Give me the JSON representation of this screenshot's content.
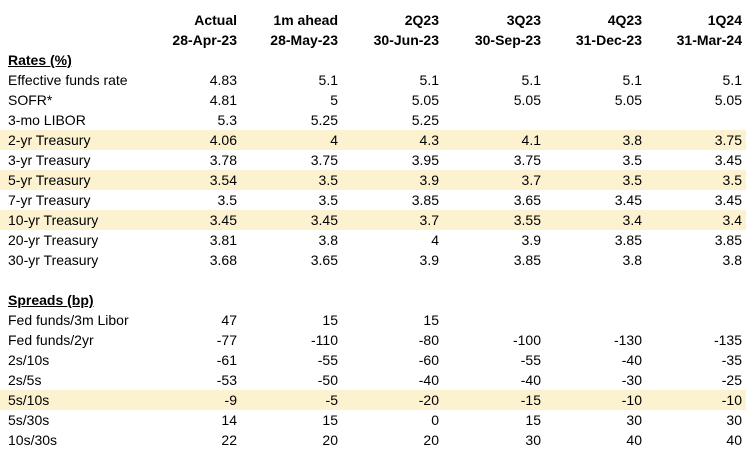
{
  "columns": [
    {
      "title": "Actual",
      "date": "28-Apr-23"
    },
    {
      "title": "1m ahead",
      "date": "28-May-23"
    },
    {
      "title": "2Q23",
      "date": "30-Jun-23"
    },
    {
      "title": "3Q23",
      "date": "30-Sep-23"
    },
    {
      "title": "4Q23",
      "date": "31-Dec-23"
    },
    {
      "title": "1Q24",
      "date": "31-Mar-24"
    }
  ],
  "highlight_color": "#fdf2d0",
  "sections": [
    {
      "title": "Rates (%)",
      "rows": [
        {
          "label": "Effective funds rate",
          "values": [
            4.83,
            5.1,
            5.1,
            5.1,
            5.1,
            5.1
          ]
        },
        {
          "label": "SOFR*",
          "values": [
            4.81,
            5,
            5.05,
            5.05,
            5.05,
            5.05
          ]
        },
        {
          "label": "3-mo LIBOR",
          "values": [
            5.3,
            5.25,
            5.25,
            null,
            null,
            null
          ]
        },
        {
          "label": "2-yr Treasury",
          "values": [
            4.06,
            4,
            4.3,
            4.1,
            3.8,
            3.75
          ],
          "highlight": true
        },
        {
          "label": "3-yr Treasury",
          "values": [
            3.78,
            3.75,
            3.95,
            3.75,
            3.5,
            3.45
          ]
        },
        {
          "label": "5-yr Treasury",
          "values": [
            3.54,
            3.5,
            3.9,
            3.7,
            3.5,
            3.5
          ],
          "highlight": true
        },
        {
          "label": "7-yr Treasury",
          "values": [
            3.5,
            3.5,
            3.85,
            3.65,
            3.45,
            3.45
          ]
        },
        {
          "label": "10-yr Treasury",
          "values": [
            3.45,
            3.45,
            3.7,
            3.55,
            3.4,
            3.4
          ],
          "highlight": true
        },
        {
          "label": "20-yr Treasury",
          "values": [
            3.81,
            3.8,
            4,
            3.9,
            3.85,
            3.85
          ]
        },
        {
          "label": "30-yr Treasury",
          "values": [
            3.68,
            3.65,
            3.9,
            3.85,
            3.8,
            3.8
          ]
        }
      ]
    },
    {
      "title": "Spreads (bp)",
      "rows": [
        {
          "label": "Fed funds/3m Libor",
          "values": [
            47,
            15,
            15,
            null,
            null,
            null
          ]
        },
        {
          "label": "Fed funds/2yr",
          "values": [
            -77,
            -110,
            -80,
            -100,
            -130,
            -135
          ]
        },
        {
          "label": "2s/10s",
          "values": [
            -61,
            -55,
            -60,
            -55,
            -40,
            -35
          ]
        },
        {
          "label": "2s/5s",
          "values": [
            -53,
            -50,
            -40,
            -40,
            -30,
            -25
          ]
        },
        {
          "label": "5s/10s",
          "values": [
            -9,
            -5,
            -20,
            -15,
            -10,
            -10
          ],
          "highlight": true
        },
        {
          "label": "5s/30s",
          "values": [
            14,
            15,
            0,
            15,
            30,
            30
          ]
        },
        {
          "label": "10s/30s",
          "values": [
            22,
            20,
            20,
            30,
            40,
            40
          ]
        }
      ]
    }
  ]
}
